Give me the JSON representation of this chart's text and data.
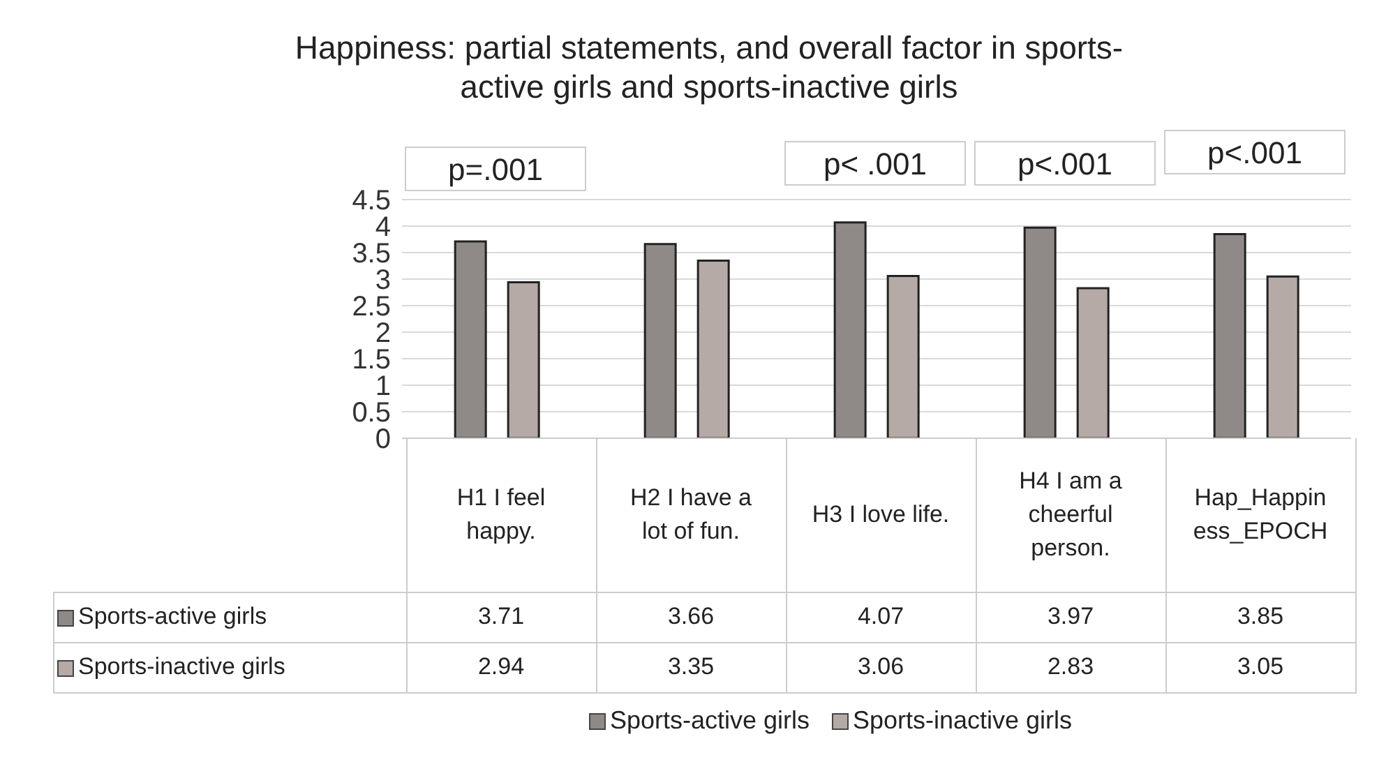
{
  "chart_data": {
    "type": "bar",
    "title": "Happiness: partial statements, and overall factor in sports-active girls and sports-inactive girls",
    "categories": [
      "H1 I feel happy.",
      "H2 I have a lot of fun.",
      "H3 I love life.",
      "H4 I am a cheerful person.",
      "Hap_Happiness_EPOCH"
    ],
    "series": [
      {
        "name": "Sports-active girls",
        "color": "#8f8a88",
        "values": [
          3.71,
          3.66,
          4.07,
          3.97,
          3.85
        ]
      },
      {
        "name": "Sports-inactive girls",
        "color": "#b5aaa6",
        "values": [
          2.94,
          3.35,
          3.06,
          2.83,
          3.05
        ]
      }
    ],
    "ylim": [
      0,
      4.5
    ],
    "yticks": [
      0,
      0.5,
      1,
      1.5,
      2,
      2.5,
      3,
      3.5,
      4,
      4.5
    ],
    "grid": "y",
    "legend": "bottom",
    "data_labels": true,
    "annotations": [
      "p=.001",
      "p< .001",
      "p<.001",
      "p<.001"
    ]
  }
}
